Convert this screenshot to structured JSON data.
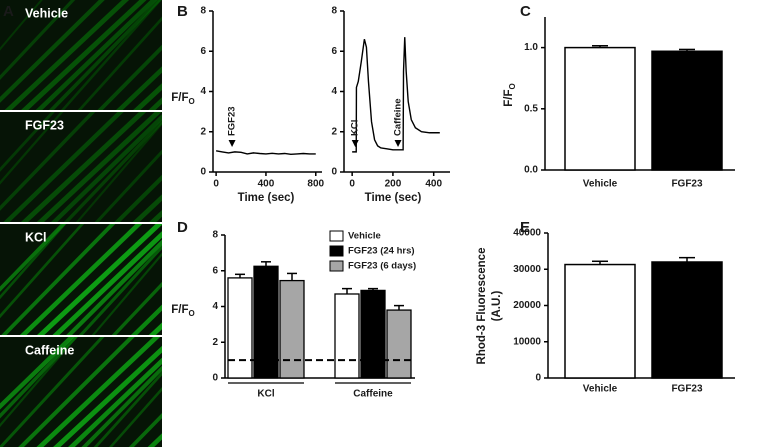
{
  "image_panel": {
    "panel": "A",
    "labels": [
      "Vehicle",
      "FGF23",
      "KCl",
      "Caffeine"
    ]
  },
  "chart_data": [
    {
      "type": "line",
      "panel": "B",
      "ylabel": "F/F",
      "ylabel_sub": "O",
      "xlabel": "Time (sec)",
      "x": [
        0,
        50,
        100,
        150,
        200,
        250,
        300,
        350,
        400,
        450,
        500,
        550,
        600,
        650,
        700,
        750,
        800
      ],
      "values": [
        1.05,
        1.0,
        0.95,
        1.0,
        0.98,
        0.9,
        0.95,
        0.92,
        0.9,
        0.93,
        0.9,
        0.92,
        0.88,
        0.9,
        0.92,
        0.9,
        0.9
      ],
      "color": "#000000",
      "xlim": [
        -25,
        850
      ],
      "ylim": [
        0,
        8
      ],
      "xticks": [
        0,
        400,
        800
      ],
      "yticks": [
        0,
        2,
        4,
        6,
        8
      ],
      "annotations": [
        {
          "text": "FGF23",
          "x": 128
        }
      ]
    },
    {
      "type": "line",
      "xlabel": "Time (sec)",
      "x": [
        0,
        10,
        20,
        21,
        30,
        45,
        60,
        70,
        80,
        95,
        110,
        125,
        140,
        170,
        200,
        230,
        250,
        252,
        258,
        265,
        275,
        290,
        310,
        340,
        380,
        430
      ],
      "values": [
        1,
        1,
        1,
        4.2,
        4.5,
        5.5,
        6.6,
        6.2,
        4.5,
        2.5,
        1.6,
        1.3,
        1.2,
        1.15,
        1.1,
        1.1,
        1.1,
        5,
        6.7,
        5,
        3.5,
        2.6,
        2.2,
        2.0,
        1.95,
        1.95
      ],
      "color": "#000000",
      "xlim": [
        -40,
        480
      ],
      "ylim": [
        0,
        8
      ],
      "xticks": [
        0,
        200,
        400
      ],
      "yticks": [
        0,
        2,
        4,
        6,
        8
      ],
      "annotations": [
        {
          "text": "KCl",
          "x": 15
        },
        {
          "text": "Caffeine",
          "x": 225
        }
      ]
    },
    {
      "type": "bar",
      "panel": "C",
      "ylabel": "F/F",
      "ylabel_sub": "O",
      "categories": [
        "Vehicle",
        "FGF23"
      ],
      "values": [
        1.0,
        0.97
      ],
      "errors": [
        0.015,
        0.015
      ],
      "colors": [
        "#ffffff",
        "#000000"
      ],
      "ylim": [
        0,
        1.25
      ],
      "yticks": [
        {
          "value": 0,
          "label": "0.0"
        },
        {
          "value": 0.5,
          "label": "0.5"
        },
        {
          "value": 1,
          "label": "1.0"
        }
      ]
    },
    {
      "type": "bar",
      "panel": "D",
      "ylabel": "F/F",
      "ylabel_sub": "O",
      "categories": [
        "KCl",
        "Caffeine"
      ],
      "series": [
        {
          "name": "Vehicle",
          "color": "#ffffff",
          "values": [
            5.6,
            4.7
          ],
          "errors": [
            0.2,
            0.3
          ]
        },
        {
          "name": "FGF23 (24 hrs)",
          "color": "#000000",
          "values": [
            6.25,
            4.9
          ],
          "errors": [
            0.25,
            0.1
          ]
        },
        {
          "name": "FGF23 (6 days)",
          "color": "#a6a6a6",
          "values": [
            5.45,
            3.8
          ],
          "errors": [
            0.4,
            0.25
          ]
        }
      ],
      "reference_line": 1,
      "legend": "top-right",
      "ylim": [
        0,
        8
      ],
      "yticks": [
        0,
        2,
        4,
        6,
        8
      ]
    },
    {
      "type": "bar",
      "panel": "E",
      "ylabel": [
        "Rhod-3 Fluorescence",
        "(A.U.)"
      ],
      "categories": [
        "Vehicle",
        "FGF23"
      ],
      "values": [
        31300,
        32000
      ],
      "errors": [
        900,
        1200
      ],
      "colors": [
        "#ffffff",
        "#000000"
      ],
      "ylim": [
        0,
        40000
      ],
      "yticks": [
        0,
        10000,
        20000,
        30000,
        40000
      ]
    }
  ]
}
